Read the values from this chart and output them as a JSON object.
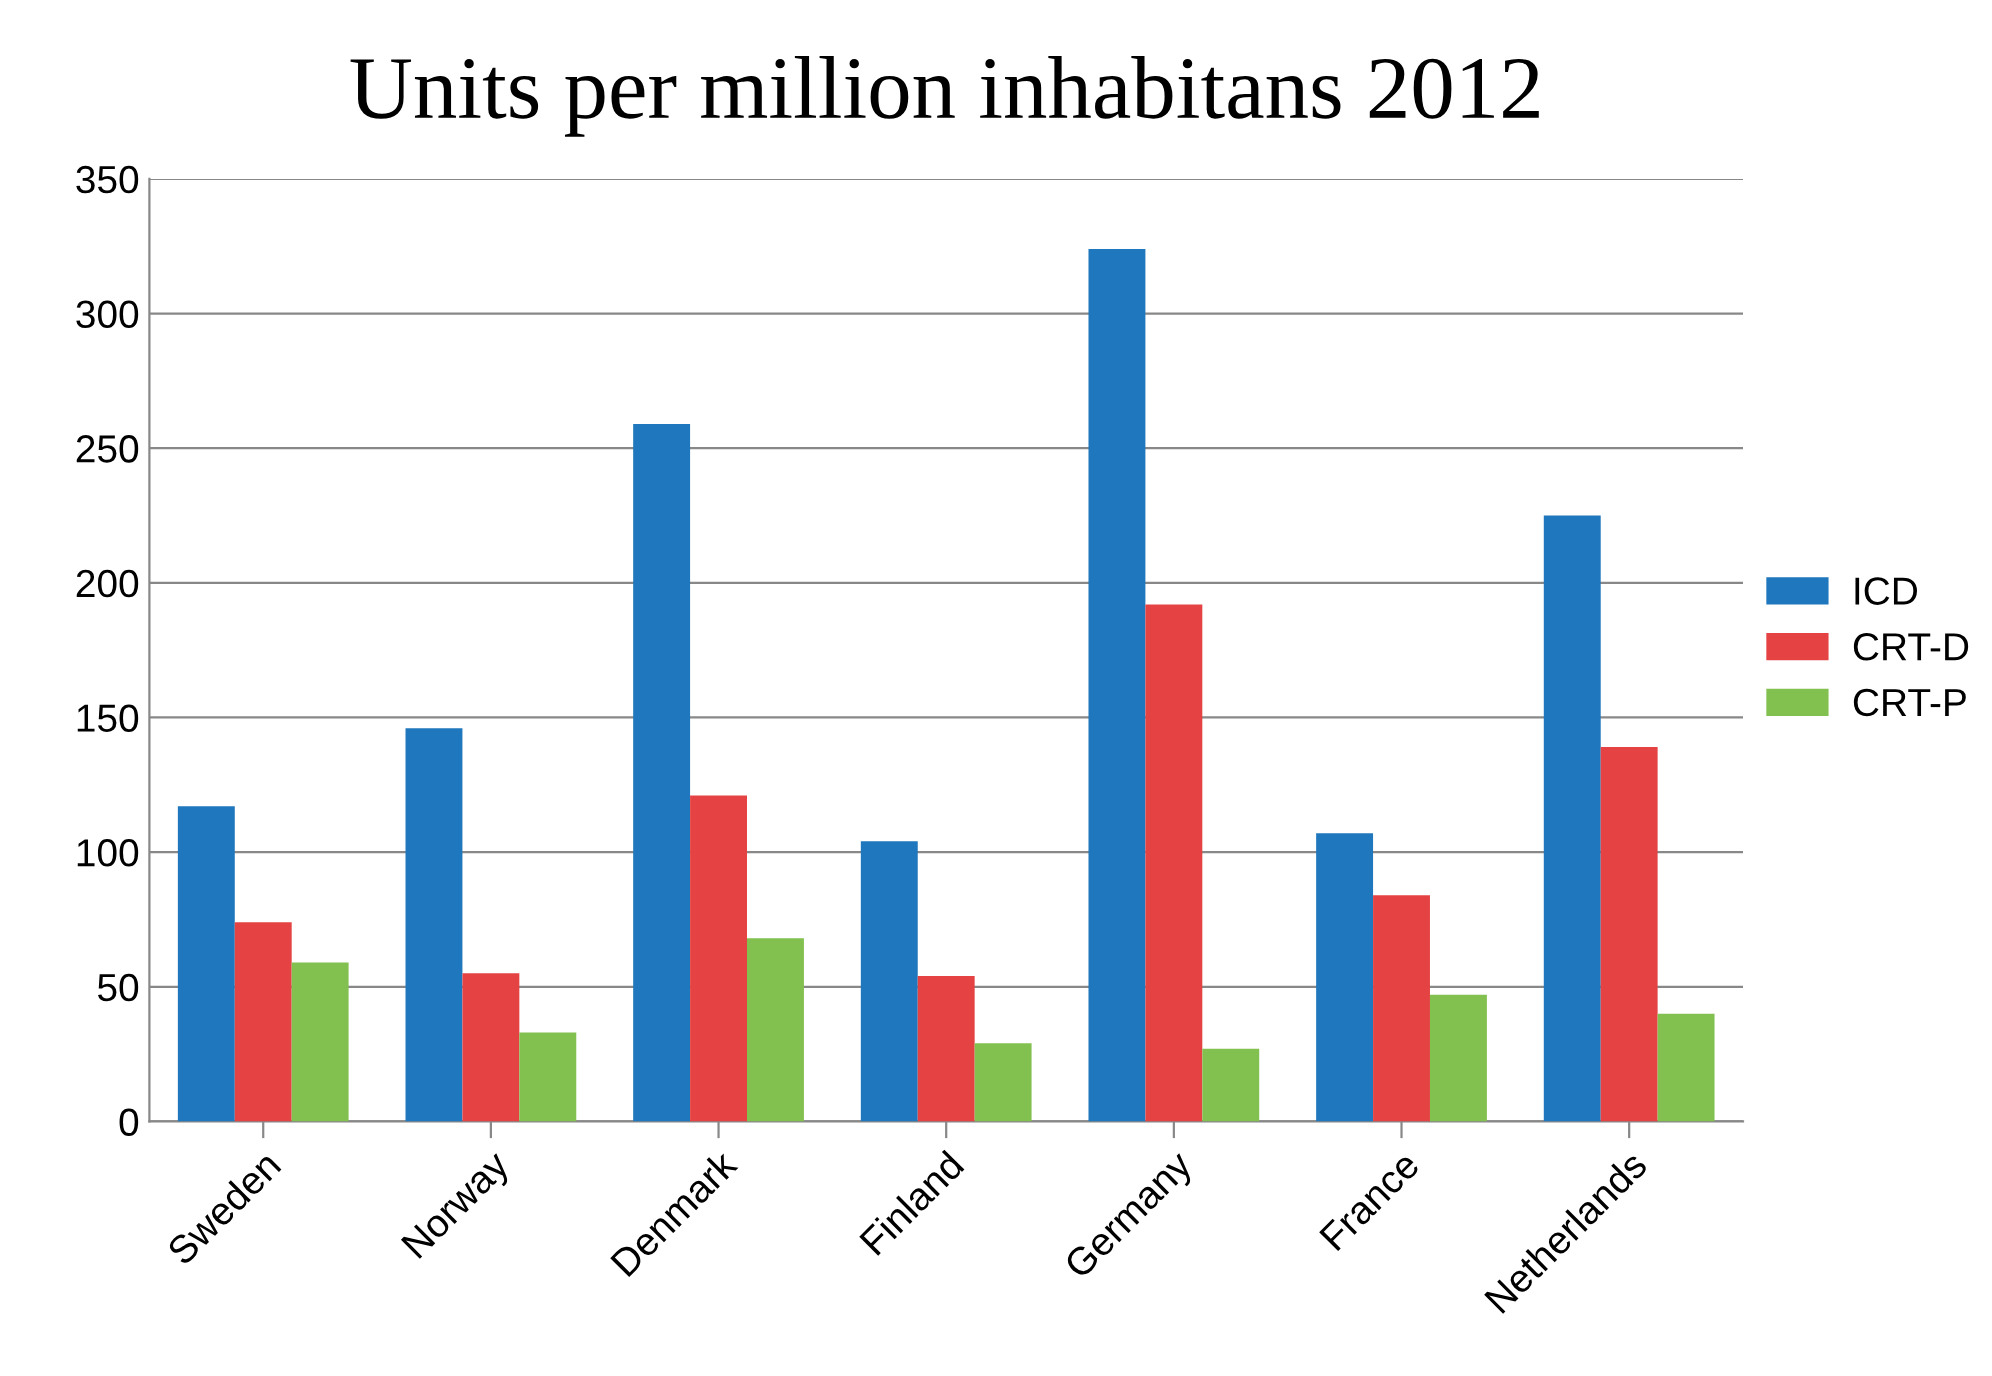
{
  "chart_data": {
    "type": "bar",
    "title": "Units per million inhabitans 2012",
    "categories": [
      "Sweden",
      "Norway",
      "Denmark",
      "Finland",
      "Germany",
      "France",
      "Netherlands"
    ],
    "series": [
      {
        "name": "ICD",
        "color": "#1f77bd",
        "values": [
          117,
          146,
          259,
          104,
          324,
          107,
          225
        ]
      },
      {
        "name": "CRT-D",
        "color": "#e54343",
        "values": [
          74,
          55,
          121,
          54,
          192,
          84,
          139
        ]
      },
      {
        "name": "CRT-P",
        "color": "#82c04f",
        "values": [
          59,
          33,
          68,
          29,
          27,
          47,
          40
        ]
      }
    ],
    "ylim": [
      0,
      350
    ],
    "yticks": [
      0,
      50,
      100,
      150,
      200,
      250,
      300,
      350
    ],
    "grid": "y",
    "legend": "right"
  }
}
